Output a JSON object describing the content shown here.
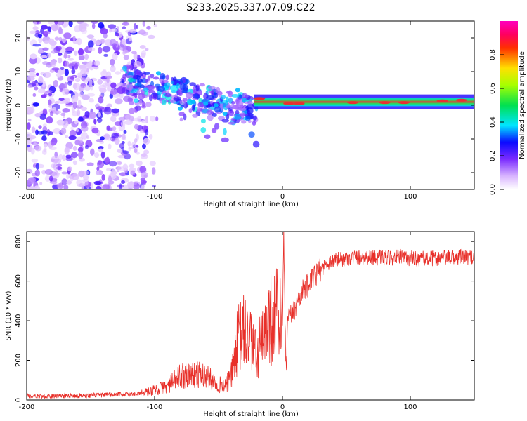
{
  "title": "S233.2025.337.07.09.C22",
  "colors": {
    "trace": "#e8302a",
    "axis": "#000000",
    "background": "#ffffff"
  },
  "chart_data": [
    {
      "type": "heatmap",
      "xlabel": "Height of straight line (km)",
      "ylabel": "Frequency (Hz)",
      "xlim": [
        -200,
        150
      ],
      "ylim": [
        -25,
        25
      ],
      "xticks": [
        -200,
        -100,
        0,
        100
      ],
      "yticks": [
        -20,
        -10,
        0,
        10,
        20
      ],
      "colorbar": {
        "label": "Normalized spectral amplitude",
        "range": [
          0.0,
          1.0
        ],
        "ticks": [
          0.0,
          0.2,
          0.4,
          0.6,
          0.8
        ],
        "colormap": "rainbow (magenta-blue-cyan-green-yellow-red)"
      },
      "features": [
        {
          "region": "x -200 to -105 km",
          "description": "scattered low amplitude noise across all frequencies"
        },
        {
          "region": "x -125 to -20 km",
          "description": "medium amplitude blobs drifting from about +8 Hz to about -3 Hz"
        },
        {
          "region": "x -20 to 150 km",
          "description": "continuous high amplitude band near +1 Hz"
        }
      ]
    },
    {
      "type": "line",
      "xlabel": "Height of straight line (km)",
      "ylabel": "SNR (10 * v/v)",
      "xlim": [
        -200,
        150
      ],
      "ylim": [
        0,
        850
      ],
      "xticks": [
        -200,
        -100,
        0,
        100
      ],
      "yticks": [
        0,
        200,
        400,
        600,
        800
      ],
      "series": [
        {
          "name": "SNR",
          "x": [
            -200,
            -180,
            -160,
            -140,
            -120,
            -110,
            -100,
            -90,
            -80,
            -75,
            -70,
            -65,
            -60,
            -55,
            -50,
            -45,
            -40,
            -35,
            -30,
            -28,
            -25,
            -22,
            -20,
            -17,
            -15,
            -12,
            -10,
            -8,
            -6,
            -4,
            -2,
            0,
            1,
            2,
            3,
            4,
            6,
            8,
            10,
            12,
            15,
            20,
            25,
            30,
            35,
            40,
            50,
            60,
            70,
            80,
            90,
            100,
            110,
            120,
            130,
            140,
            150
          ],
          "y": [
            20,
            20,
            22,
            25,
            28,
            35,
            50,
            70,
            120,
            130,
            125,
            130,
            120,
            100,
            80,
            70,
            120,
            300,
            350,
            320,
            330,
            250,
            200,
            300,
            280,
            380,
            420,
            420,
            410,
            440,
            400,
            380,
            850,
            350,
            120,
            400,
            420,
            440,
            470,
            500,
            540,
            580,
            620,
            660,
            690,
            705,
            715,
            720,
            720,
            715,
            720,
            715,
            712,
            715,
            718,
            722,
            720
          ]
        }
      ]
    }
  ]
}
